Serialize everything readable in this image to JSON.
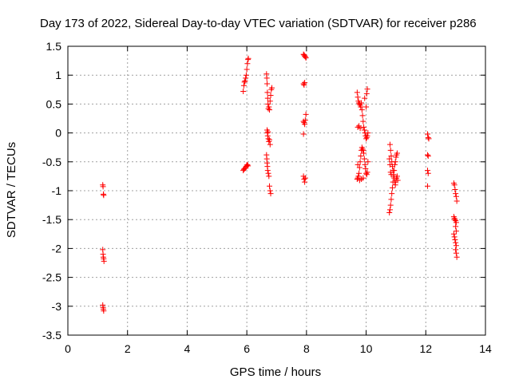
{
  "chart_data": {
    "type": "scatter",
    "title": "Day 173 of 2022, Sidereal Day-to-day VTEC variation (SDTVAR) for receiver p286",
    "xlabel": "GPS time / hours",
    "ylabel": "SDTVAR / TECUs",
    "xlim": [
      0,
      14
    ],
    "ylim": [
      -3.5,
      1.5
    ],
    "xticks": [
      0,
      2,
      4,
      6,
      8,
      10,
      12,
      14
    ],
    "yticks": [
      1.5,
      1,
      0.5,
      0,
      -0.5,
      -1,
      -1.5,
      -2,
      -2.5,
      -3,
      -3.5
    ],
    "xtick_labels": [
      "0",
      "2",
      "4",
      "6",
      "8",
      "10",
      "12",
      "14"
    ],
    "ytick_labels": [
      "1.5",
      "1",
      "0.5",
      "0",
      "-0.5",
      "-1",
      "-1.5",
      "-2",
      "-2.5",
      "-3",
      "-3.5"
    ],
    "grid": true,
    "marker": "+",
    "color": "#ff0000",
    "series": [
      {
        "name": "SDTVAR",
        "points": [
          [
            1.17,
            -0.9
          ],
          [
            1.18,
            -0.93
          ],
          [
            1.19,
            -1.06
          ],
          [
            1.2,
            -1.08
          ],
          [
            1.17,
            -2.02
          ],
          [
            1.18,
            -2.1
          ],
          [
            1.19,
            -2.15
          ],
          [
            1.2,
            -2.18
          ],
          [
            1.21,
            -2.22
          ],
          [
            1.17,
            -2.98
          ],
          [
            1.18,
            -3.02
          ],
          [
            1.19,
            -3.05
          ],
          [
            1.2,
            -3.08
          ],
          [
            5.88,
            0.72
          ],
          [
            5.9,
            0.82
          ],
          [
            5.92,
            0.88
          ],
          [
            5.94,
            0.9
          ],
          [
            5.96,
            0.95
          ],
          [
            5.98,
            1.0
          ],
          [
            6.0,
            1.1
          ],
          [
            6.02,
            1.2
          ],
          [
            6.04,
            1.27
          ],
          [
            6.05,
            1.29
          ],
          [
            5.88,
            -0.65
          ],
          [
            5.9,
            -0.63
          ],
          [
            5.92,
            -0.62
          ],
          [
            5.95,
            -0.6
          ],
          [
            5.98,
            -0.58
          ],
          [
            6.0,
            -0.56
          ],
          [
            6.02,
            -0.55
          ],
          [
            6.04,
            -0.57
          ],
          [
            6.66,
            1.02
          ],
          [
            6.67,
            0.95
          ],
          [
            6.68,
            0.85
          ],
          [
            6.69,
            0.7
          ],
          [
            6.7,
            0.6
          ],
          [
            6.71,
            0.5
          ],
          [
            6.72,
            0.42
          ],
          [
            6.74,
            0.45
          ],
          [
            6.76,
            0.4
          ],
          [
            6.78,
            0.55
          ],
          [
            6.8,
            0.65
          ],
          [
            6.82,
            0.75
          ],
          [
            6.84,
            0.78
          ],
          [
            6.68,
            0.05
          ],
          [
            6.69,
            0.0
          ],
          [
            6.7,
            -0.05
          ],
          [
            6.71,
            0.02
          ],
          [
            6.72,
            -0.1
          ],
          [
            6.74,
            -0.15
          ],
          [
            6.76,
            -0.12
          ],
          [
            6.78,
            -0.2
          ],
          [
            6.66,
            -0.38
          ],
          [
            6.67,
            -0.45
          ],
          [
            6.68,
            -0.52
          ],
          [
            6.69,
            -0.58
          ],
          [
            6.7,
            -0.65
          ],
          [
            6.72,
            -0.7
          ],
          [
            6.74,
            -0.75
          ],
          [
            6.76,
            -0.92
          ],
          [
            6.78,
            -1.0
          ],
          [
            6.8,
            -1.05
          ],
          [
            7.9,
            1.36
          ],
          [
            7.92,
            1.35
          ],
          [
            7.94,
            1.33
          ],
          [
            7.96,
            1.32
          ],
          [
            7.98,
            1.3
          ],
          [
            7.9,
            0.85
          ],
          [
            7.92,
            0.83
          ],
          [
            7.94,
            0.87
          ],
          [
            7.9,
            0.2
          ],
          [
            7.92,
            0.18
          ],
          [
            7.94,
            0.15
          ],
          [
            7.96,
            0.22
          ],
          [
            7.98,
            0.32
          ],
          [
            7.9,
            -0.02
          ],
          [
            7.9,
            -0.75
          ],
          [
            7.92,
            -0.8
          ],
          [
            7.94,
            -0.85
          ],
          [
            7.96,
            -0.78
          ],
          [
            9.7,
            0.7
          ],
          [
            9.72,
            0.62
          ],
          [
            9.74,
            0.55
          ],
          [
            9.76,
            0.52
          ],
          [
            9.78,
            0.5
          ],
          [
            9.8,
            0.48
          ],
          [
            9.82,
            0.45
          ],
          [
            9.84,
            0.52
          ],
          [
            9.86,
            0.4
          ],
          [
            9.88,
            0.3
          ],
          [
            9.9,
            0.2
          ],
          [
            9.92,
            0.1
          ],
          [
            9.94,
            0.05
          ],
          [
            9.96,
            0.0
          ],
          [
            9.98,
            -0.05
          ],
          [
            10.0,
            -0.1
          ],
          [
            10.02,
            -0.08
          ],
          [
            10.04,
            -0.05
          ],
          [
            10.06,
            0.0
          ],
          [
            9.95,
            0.6
          ],
          [
            10.0,
            0.45
          ],
          [
            10.02,
            0.68
          ],
          [
            10.04,
            0.76
          ],
          [
            9.72,
            0.1
          ],
          [
            9.76,
            0.12
          ],
          [
            9.8,
            0.08
          ],
          [
            9.7,
            -0.8
          ],
          [
            9.72,
            -0.78
          ],
          [
            9.74,
            -0.75
          ],
          [
            9.76,
            -0.7
          ],
          [
            9.78,
            -0.6
          ],
          [
            9.8,
            -0.5
          ],
          [
            9.82,
            -0.4
          ],
          [
            9.84,
            -0.3
          ],
          [
            9.86,
            -0.25
          ],
          [
            9.88,
            -0.28
          ],
          [
            9.9,
            -0.3
          ],
          [
            9.92,
            -0.35
          ],
          [
            9.94,
            -0.45
          ],
          [
            9.96,
            -0.55
          ],
          [
            9.98,
            -0.62
          ],
          [
            10.0,
            -0.7
          ],
          [
            10.02,
            -0.72
          ],
          [
            10.04,
            -0.68
          ],
          [
            10.06,
            -0.5
          ],
          [
            9.72,
            -0.55
          ],
          [
            9.78,
            -0.82
          ],
          [
            9.84,
            -0.8
          ],
          [
            9.9,
            -0.78
          ],
          [
            10.78,
            -1.38
          ],
          [
            10.8,
            -1.33
          ],
          [
            10.82,
            -1.25
          ],
          [
            10.84,
            -1.15
          ],
          [
            10.86,
            -1.05
          ],
          [
            10.88,
            -0.95
          ],
          [
            10.9,
            -0.85
          ],
          [
            10.92,
            -0.75
          ],
          [
            10.94,
            -0.65
          ],
          [
            10.96,
            -0.55
          ],
          [
            10.98,
            -0.5
          ],
          [
            11.0,
            -0.42
          ],
          [
            11.02,
            -0.38
          ],
          [
            11.04,
            -0.35
          ],
          [
            10.8,
            -0.2
          ],
          [
            10.82,
            -0.3
          ],
          [
            10.84,
            -0.4
          ],
          [
            10.86,
            -0.5
          ],
          [
            10.88,
            -0.58
          ],
          [
            10.9,
            -0.65
          ],
          [
            10.92,
            -0.72
          ],
          [
            10.94,
            -0.78
          ],
          [
            10.96,
            -0.85
          ],
          [
            10.98,
            -0.9
          ],
          [
            11.0,
            -0.82
          ],
          [
            11.02,
            -0.78
          ],
          [
            11.04,
            -0.75
          ],
          [
            11.06,
            -0.82
          ],
          [
            10.78,
            -0.45
          ],
          [
            10.8,
            -0.55
          ],
          [
            10.82,
            -0.68
          ],
          [
            10.84,
            -0.72
          ],
          [
            12.06,
            -0.02
          ],
          [
            12.08,
            -0.08
          ],
          [
            12.1,
            -0.1
          ],
          [
            12.06,
            -0.38
          ],
          [
            12.08,
            -0.4
          ],
          [
            12.06,
            -0.65
          ],
          [
            12.08,
            -0.7
          ],
          [
            12.06,
            -0.92
          ],
          [
            12.94,
            -0.87
          ],
          [
            12.96,
            -0.9
          ],
          [
            12.98,
            -0.98
          ],
          [
            13.0,
            -1.05
          ],
          [
            13.02,
            -1.1
          ],
          [
            13.04,
            -1.18
          ],
          [
            12.94,
            -1.45
          ],
          [
            12.96,
            -1.48
          ],
          [
            12.98,
            -1.5
          ],
          [
            13.0,
            -1.52
          ],
          [
            13.02,
            -1.55
          ],
          [
            13.0,
            -1.62
          ],
          [
            13.02,
            -1.7
          ],
          [
            12.94,
            -1.75
          ],
          [
            12.96,
            -1.8
          ],
          [
            12.98,
            -1.85
          ],
          [
            13.0,
            -1.9
          ],
          [
            13.02,
            -1.95
          ],
          [
            13.0,
            -2.02
          ],
          [
            13.02,
            -2.08
          ],
          [
            13.04,
            -2.15
          ]
        ]
      }
    ]
  }
}
